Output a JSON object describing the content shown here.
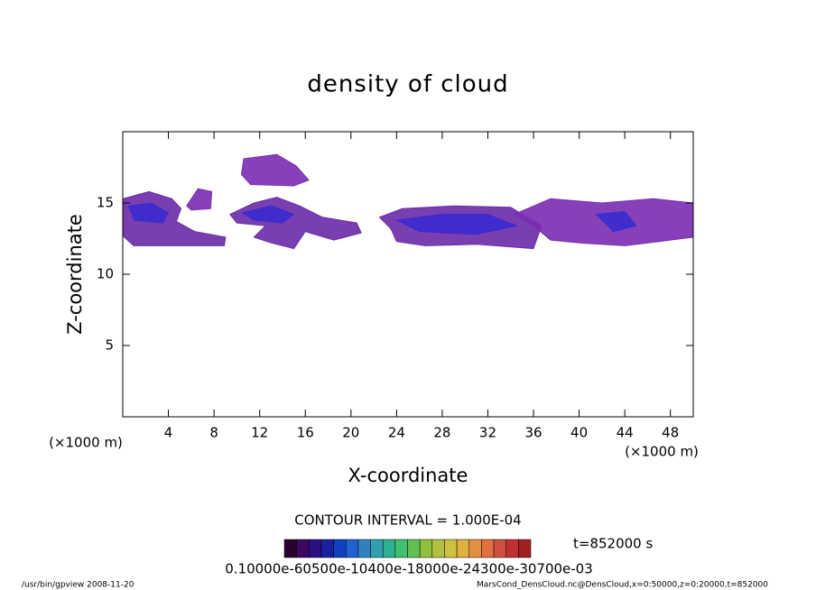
{
  "chart_data": {
    "type": "contour",
    "title": "density of cloud",
    "x_label": "X-coordinate",
    "y_label": "Z-coordinate",
    "x_unit": "(×1000 m)",
    "y_unit": "(×1000 m)",
    "xlim": [
      0,
      50
    ],
    "ylim": [
      0,
      20
    ],
    "xticks": [
      4,
      8,
      12,
      16,
      20,
      24,
      28,
      32,
      36,
      40,
      44,
      48
    ],
    "yticks": [
      5,
      10,
      15
    ],
    "regions": [
      {
        "color": "#6a2aa8",
        "x": [
          0,
          2.3,
          4.3,
          5.1,
          4.7,
          6.3,
          9.0,
          8.9,
          0.95,
          0
        ],
        "z": [
          15.3,
          15.8,
          15.3,
          14.6,
          13.7,
          13.0,
          12.6,
          12.0,
          12.0,
          12.7
        ]
      },
      {
        "color": "#7a2cb0",
        "x": [
          10.6,
          13.5,
          15.2,
          16.3,
          15.0,
          11.2,
          10.4
        ],
        "z": [
          18.1,
          18.4,
          17.6,
          16.6,
          16.2,
          16.3,
          17.0
        ]
      },
      {
        "color": "#7a2cb0",
        "x": [
          5.6,
          6.6,
          7.8,
          7.7,
          6.0
        ],
        "z": [
          14.8,
          16.0,
          15.8,
          14.6,
          14.5
        ]
      },
      {
        "color": "#6a2aa8",
        "x": [
          9.4,
          11.5,
          13.5,
          15.5,
          17.5,
          20.5,
          20.9,
          18.5,
          16.0,
          15.0,
          13.0,
          11.5,
          12.5,
          10.0
        ],
        "z": [
          14.2,
          15.0,
          15.4,
          14.8,
          14.0,
          13.6,
          12.9,
          12.4,
          13.0,
          11.8,
          12.2,
          12.6,
          13.4,
          13.6
        ]
      },
      {
        "color": "#6a2aa8",
        "x": [
          22.5,
          24.5,
          29,
          34,
          36.7,
          36.0,
          31,
          26.5,
          24.0,
          23.5
        ],
        "z": [
          14.0,
          14.6,
          14.8,
          14.7,
          13.4,
          11.8,
          12.1,
          12.0,
          12.3,
          13.2
        ]
      },
      {
        "color": "#7a2cb0",
        "x": [
          34.3,
          37.5,
          42,
          46.5,
          50,
          50,
          47,
          44,
          40,
          37.5,
          36
        ],
        "z": [
          14.2,
          15.3,
          15.0,
          15.3,
          15.0,
          12.6,
          12.3,
          12.0,
          12.2,
          12.4,
          13.4
        ]
      },
      {
        "color": "#3a2ad0",
        "x": [
          0.5,
          2.5,
          4.0,
          3.5,
          1.0
        ],
        "z": [
          14.8,
          15.0,
          14.3,
          13.6,
          13.8
        ]
      },
      {
        "color": "#3a2ad0",
        "x": [
          10.5,
          13.0,
          15.0,
          14.0,
          11.5
        ],
        "z": [
          14.3,
          14.8,
          14.2,
          13.6,
          13.8
        ]
      },
      {
        "color": "#3a2ad0",
        "x": [
          24.0,
          28.0,
          32.0,
          34.5,
          31.0,
          26.0
        ],
        "z": [
          13.8,
          14.2,
          14.2,
          13.4,
          12.8,
          13.0
        ]
      },
      {
        "color": "#3a2ad0",
        "x": [
          41.5,
          44.0,
          45.0,
          43.0
        ],
        "z": [
          14.2,
          14.4,
          13.4,
          13.0
        ]
      }
    ],
    "contour_interval": "CONTOUR INTERVAL = 1.000E-04",
    "time_label": "t=852000 s",
    "colorbar": {
      "colors": [
        "#2a0030",
        "#3a0860",
        "#2a1080",
        "#1a20a0",
        "#1040c0",
        "#2060d0",
        "#3080c0",
        "#30a0b0",
        "#30b090",
        "#40c070",
        "#60c050",
        "#90c040",
        "#b0c040",
        "#d0c040",
        "#e0b040",
        "#e09040",
        "#e07040",
        "#d05040",
        "#c03030",
        "#a02020"
      ],
      "labels": "0.10000e-60500e-10400e-18000e-24300e-30700e-03"
    },
    "footer_left": "/usr/bin/gpview   2008-11-20",
    "footer_right": "MarsCond_DensCloud.nc@DensCloud,x=0:50000,z=0:20000,t=852000"
  }
}
